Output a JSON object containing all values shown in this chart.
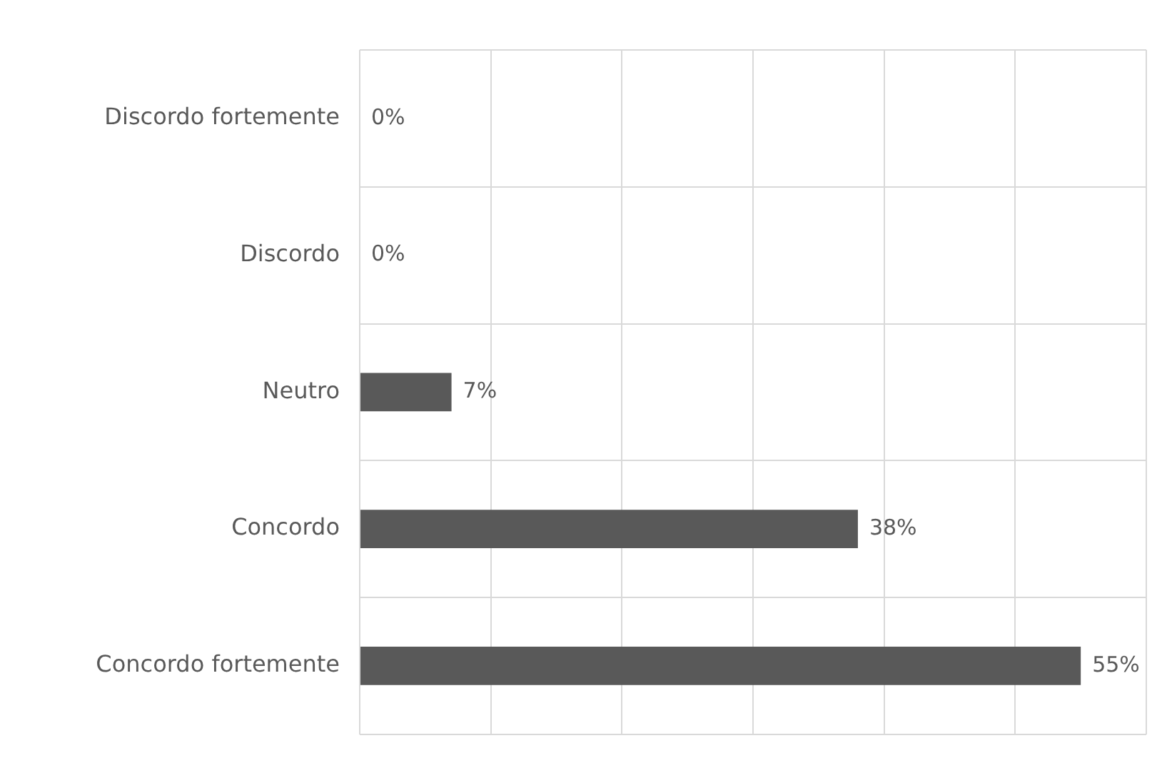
{
  "chart_data": {
    "type": "bar",
    "orientation": "horizontal",
    "categories": [
      "Discordo fortemente",
      "Discordo",
      "Neutro",
      "Concordo",
      "Concordo fortemente"
    ],
    "values": [
      0,
      0,
      7,
      38,
      55
    ],
    "value_labels": [
      "0%",
      "0%",
      "7%",
      "38%",
      "55%"
    ],
    "color": "#595959",
    "xlim": [
      0,
      60
    ],
    "xticks": [
      {
        "value": 0,
        "label": null
      },
      {
        "value": 10,
        "label": null
      },
      {
        "value": 20,
        "label": null
      },
      {
        "value": 30,
        "label": null
      },
      {
        "value": 40,
        "label": null
      },
      {
        "value": 50,
        "label": null
      },
      {
        "value": 60,
        "label": null
      }
    ],
    "tick_labels": "y",
    "grid": true,
    "legend": false
  }
}
